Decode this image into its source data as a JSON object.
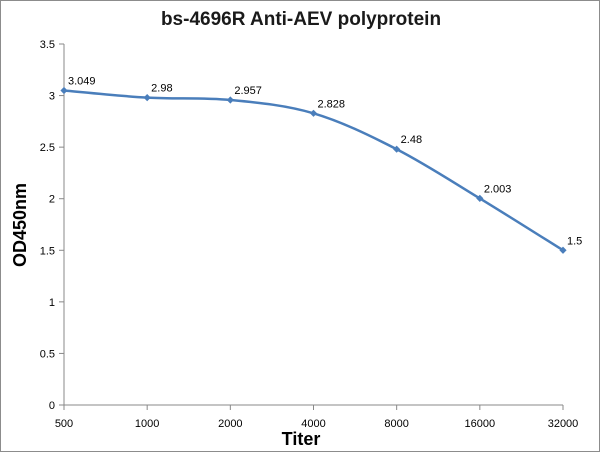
{
  "chart_data": {
    "type": "line",
    "title": "bs-4696R Anti-AEV polyprotein",
    "xlabel": "Titer",
    "ylabel": "OD450nm",
    "categories": [
      "500",
      "1000",
      "2000",
      "4000",
      "8000",
      "16000",
      "32000"
    ],
    "series": [
      {
        "values": [
          3.049,
          2.98,
          2.957,
          2.828,
          2.48,
          2.003,
          1.5
        ]
      }
    ],
    "data_labels": [
      "3.049",
      "2.98",
      "2.957",
      "2.828",
      "2.48",
      "2.003",
      "1.5"
    ],
    "ylim": [
      0,
      3.5
    ],
    "yticks": [
      "0",
      "0.5",
      "1",
      "1.5",
      "2",
      "2.5",
      "3",
      "3.5"
    ],
    "grid": false,
    "legend": "none",
    "smooth": true,
    "colors": {
      "line": "#4a7ebb",
      "marker": "#4a7ebb",
      "axis": "#888888"
    }
  }
}
